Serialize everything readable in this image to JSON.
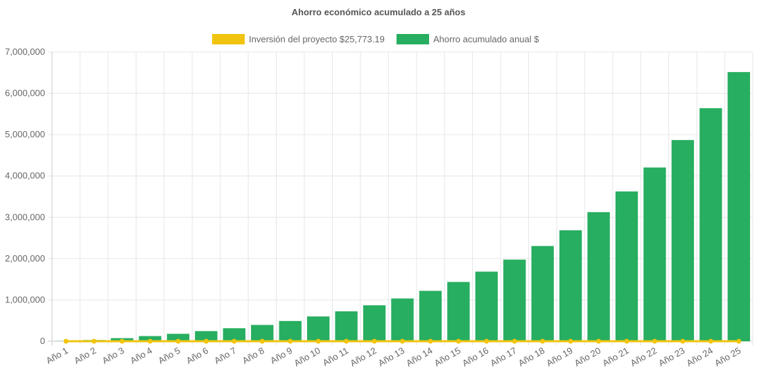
{
  "chart_data": {
    "type": "bar",
    "title": "Ahorro económico acumulado a 25 años",
    "categories": [
      "Año 1",
      "Año 2",
      "Año 3",
      "Año 4",
      "Año 5",
      "Año 6",
      "Año 7",
      "Año 8",
      "Año 9",
      "Año 10",
      "Año 11",
      "Año 12",
      "Año 13",
      "Año 14",
      "Año 15",
      "Año 16",
      "Año 17",
      "Año 18",
      "Año 19",
      "Año 20",
      "Año 21",
      "Año 22",
      "Año 23",
      "Año 24",
      "Año 25"
    ],
    "series": [
      {
        "name": "Inversión del proyecto $25,773.19",
        "type": "line",
        "color": "#f1c40f",
        "values": [
          0,
          0,
          0,
          0,
          0,
          0,
          0,
          0,
          0,
          0,
          0,
          0,
          0,
          0,
          0,
          0,
          0,
          0,
          0,
          0,
          0,
          0,
          0,
          0,
          0
        ]
      },
      {
        "name": "Ahorro acumulado anual $",
        "type": "bar",
        "color": "#27ae60",
        "values": [
          5000,
          30000,
          75000,
          125000,
          180000,
          245000,
          315000,
          395000,
          490000,
          600000,
          725000,
          870000,
          1035000,
          1220000,
          1435000,
          1685000,
          1975000,
          2305000,
          2685000,
          3125000,
          3625000,
          4205000,
          4870000,
          5640000,
          6515000
        ]
      }
    ],
    "ylim": [
      0,
      7000000
    ],
    "yticks": [
      "0",
      "1,000,000",
      "2,000,000",
      "3,000,000",
      "4,000,000",
      "5,000,000",
      "6,000,000",
      "7,000,000"
    ],
    "grid": true,
    "legend_position": "top"
  }
}
